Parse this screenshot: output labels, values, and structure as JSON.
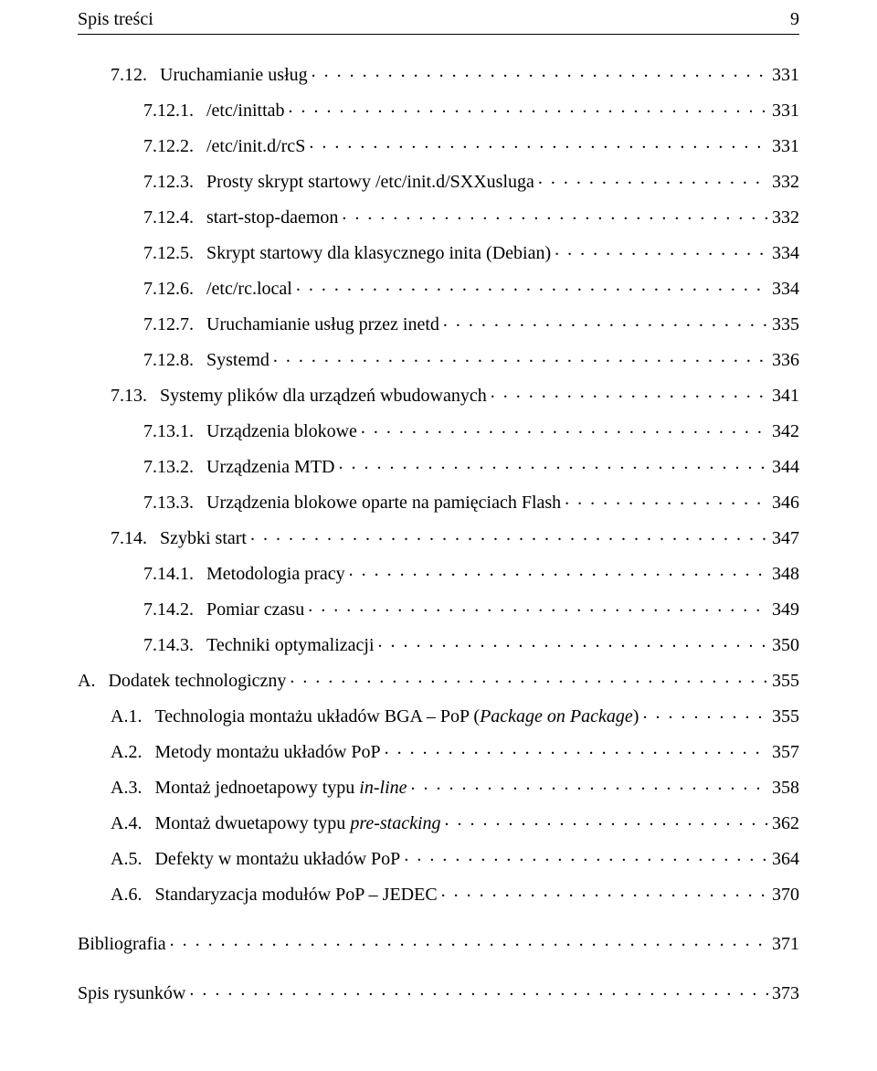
{
  "header": {
    "title": "Spis treści",
    "page_number": "9"
  },
  "style": {
    "font_family": "Times New Roman",
    "font_size_pt": 20,
    "text_color": "#000000",
    "background_color": "#ffffff",
    "rule_color": "#000000"
  },
  "toc": [
    {
      "level": 1,
      "num": "7.12.",
      "title": "Uruchamianie usług",
      "page": "331"
    },
    {
      "level": 2,
      "num": "7.12.1.",
      "title": "/etc/inittab",
      "page": "331"
    },
    {
      "level": 2,
      "num": "7.12.2.",
      "title": "/etc/init.d/rcS",
      "page": "331"
    },
    {
      "level": 2,
      "num": "7.12.3.",
      "title": "Prosty skrypt startowy /etc/init.d/SXXusluga",
      "page": "332"
    },
    {
      "level": 2,
      "num": "7.12.4.",
      "title": "start-stop-daemon",
      "page": "332"
    },
    {
      "level": 2,
      "num": "7.12.5.",
      "title": "Skrypt startowy dla klasycznego inita (Debian)",
      "page": "334"
    },
    {
      "level": 2,
      "num": "7.12.6.",
      "title": "/etc/rc.local",
      "page": "334"
    },
    {
      "level": 2,
      "num": "7.12.7.",
      "title": "Uruchamianie usług przez inetd",
      "page": "335"
    },
    {
      "level": 2,
      "num": "7.12.8.",
      "title": "Systemd",
      "page": "336"
    },
    {
      "level": 1,
      "num": "7.13.",
      "title": "Systemy plików dla urządzeń wbudowanych",
      "page": "341"
    },
    {
      "level": 2,
      "num": "7.13.1.",
      "title": "Urządzenia blokowe",
      "page": "342"
    },
    {
      "level": 2,
      "num": "7.13.2.",
      "title": "Urządzenia MTD",
      "page": "344"
    },
    {
      "level": 2,
      "num": "7.13.3.",
      "title": "Urządzenia blokowe oparte na pamięciach Flash",
      "page": "346"
    },
    {
      "level": 1,
      "num": "7.14.",
      "title": "Szybki start",
      "page": "347"
    },
    {
      "level": 2,
      "num": "7.14.1.",
      "title": "Metodologia pracy",
      "page": "348"
    },
    {
      "level": 2,
      "num": "7.14.2.",
      "title": "Pomiar czasu",
      "page": "349"
    },
    {
      "level": 2,
      "num": "7.14.3.",
      "title": "Techniki optymalizacji",
      "page": "350"
    },
    {
      "level": 0,
      "num": "A.",
      "title": "Dodatek technologiczny",
      "page": "355",
      "gap": true
    },
    {
      "level": 1,
      "num": "A.1.",
      "title_parts": [
        {
          "text": "Technologia montażu układów BGA – PoP ("
        },
        {
          "text": "Package on Package",
          "italic": true
        },
        {
          "text": ")"
        }
      ],
      "page": "355"
    },
    {
      "level": 1,
      "num": "A.2.",
      "title": "Metody montażu układów PoP",
      "page": "357"
    },
    {
      "level": 1,
      "num": "A.3.",
      "title_parts": [
        {
          "text": "Montaż jednoetapowy typu "
        },
        {
          "text": "in-line",
          "italic": true
        }
      ],
      "page": "358"
    },
    {
      "level": 1,
      "num": "A.4.",
      "title_parts": [
        {
          "text": "Montaż dwuetapowy typu "
        },
        {
          "text": "pre-stacking",
          "italic": true
        }
      ],
      "page": "362"
    },
    {
      "level": 1,
      "num": "A.5.",
      "title": "Defekty w montażu układów PoP",
      "page": "364"
    },
    {
      "level": 1,
      "num": "A.6.",
      "title": "Standaryzacja modułów PoP – JEDEC",
      "page": "370"
    },
    {
      "level": 0,
      "num": "",
      "title": "Bibliografia",
      "page": "371",
      "gap": true,
      "big_gap": true
    },
    {
      "level": 0,
      "num": "",
      "title": "Spis rysunków",
      "page": "373",
      "gap": true,
      "big_gap": true
    }
  ]
}
